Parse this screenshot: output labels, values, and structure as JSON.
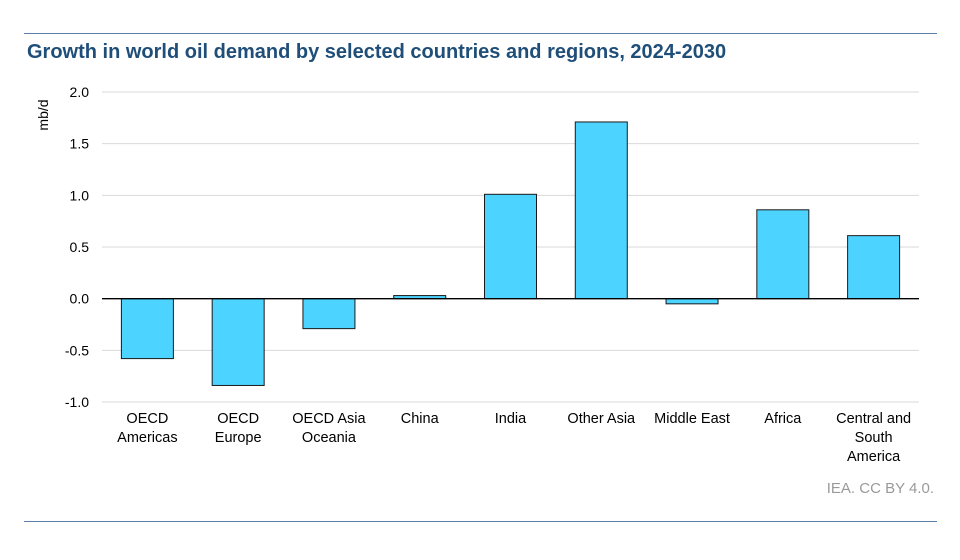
{
  "title": "Growth in world oil demand by selected countries and regions, 2024-2030",
  "source": "IEA. CC BY 4.0.",
  "chart_data": {
    "type": "bar",
    "title": "Growth in world oil demand by selected countries and regions, 2024-2030",
    "ylabel": "mb/d",
    "xlabel": "",
    "ylim": [
      -1.0,
      2.0
    ],
    "yticks": [
      2.0,
      1.5,
      1.0,
      0.5,
      0.0,
      -0.5,
      -1.0
    ],
    "ytick_labels": [
      "2.0",
      "1.5",
      "1.0",
      "0.5",
      "0.0",
      "-0.5",
      "-1.0"
    ],
    "grid": true,
    "categories": [
      [
        "OECD",
        "Americas"
      ],
      [
        "OECD",
        "Europe"
      ],
      [
        "OECD Asia",
        "Oceania"
      ],
      [
        "China"
      ],
      [
        "India"
      ],
      [
        "Other Asia"
      ],
      [
        "Middle East"
      ],
      [
        "Africa"
      ],
      [
        "Central and",
        "South",
        "America"
      ]
    ],
    "values": [
      -0.58,
      -0.84,
      -0.29,
      0.03,
      1.01,
      1.71,
      -0.05,
      0.86,
      0.61
    ],
    "bar_color": "#4dd3ff",
    "bar_edge_color": "#1a1a1a"
  }
}
